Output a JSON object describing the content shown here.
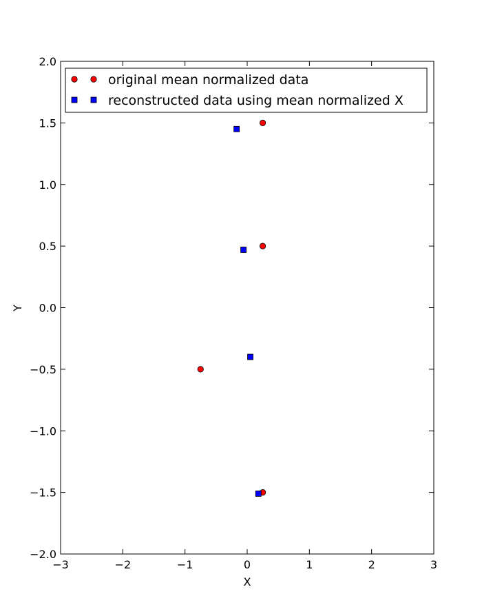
{
  "chart_data": {
    "type": "scatter",
    "title": "",
    "xlabel": "X",
    "ylabel": "Y",
    "xlim": [
      -3,
      3
    ],
    "ylim": [
      -2,
      2
    ],
    "xticks": [
      -3,
      -2,
      -1,
      0,
      1,
      2,
      3
    ],
    "xtick_labels": [
      "−3",
      "−2",
      "−1",
      "0",
      "1",
      "2",
      "3"
    ],
    "yticks": [
      2,
      1.5,
      1,
      0.5,
      0,
      -0.5,
      -1,
      -1.5,
      -2
    ],
    "ytick_labels": [
      "2.0",
      "1.5",
      "1.0",
      "0.5",
      "0.0",
      "−0.5",
      "−1.0",
      "−1.5",
      "−2.0"
    ],
    "grid": false,
    "legend_position": "top-left",
    "series": [
      {
        "name": "original mean normalized data",
        "marker": "circle",
        "color": "#ff0000",
        "points": [
          {
            "x": 0.25,
            "y": 1.5
          },
          {
            "x": 0.25,
            "y": 0.5
          },
          {
            "x": -0.75,
            "y": -0.5
          },
          {
            "x": 0.25,
            "y": -1.5
          }
        ]
      },
      {
        "name": "reconstructed data using mean normalized X",
        "marker": "square",
        "color": "#0000ff",
        "points": [
          {
            "x": -0.17,
            "y": 1.45
          },
          {
            "x": -0.06,
            "y": 0.47
          },
          {
            "x": 0.05,
            "y": -0.4
          },
          {
            "x": 0.18,
            "y": -1.51
          }
        ]
      }
    ]
  }
}
